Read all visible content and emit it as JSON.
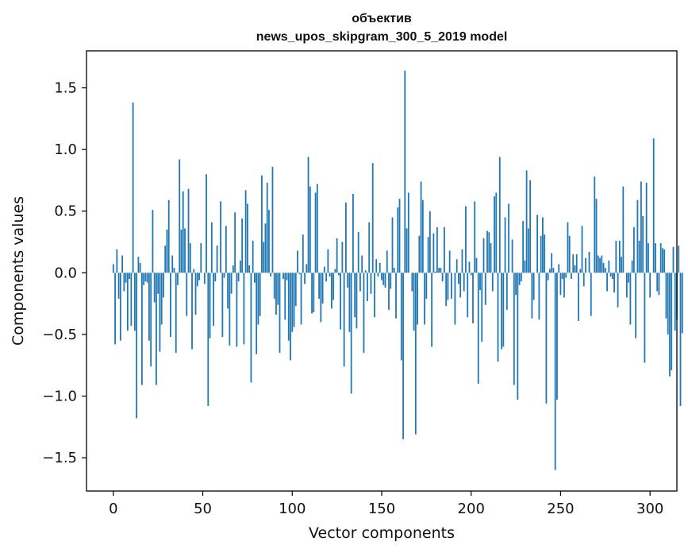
{
  "chart_data": {
    "type": "bar",
    "title": "объектив",
    "subtitle": "news_upos_skipgram_300_5_2019 model",
    "xlabel": "Vector components",
    "ylabel": "Components values",
    "xlim": [
      -15,
      315
    ],
    "ylim": [
      -1.77,
      1.8
    ],
    "xticks": [
      0,
      50,
      100,
      150,
      200,
      250,
      300
    ],
    "yticks": [
      -1.5,
      -1.0,
      -0.5,
      0.0,
      0.5,
      1.0,
      1.5
    ],
    "ytick_labels": [
      "−1.5",
      "−1.0",
      "−0.5",
      "0.0",
      "0.5",
      "1.0",
      "1.5"
    ],
    "grid": false,
    "bar_color": "#1f77b4",
    "x_start": 0,
    "values": [
      0.07,
      -0.58,
      0.19,
      -0.21,
      -0.55,
      0.14,
      -0.15,
      -0.08,
      -0.47,
      -0.05,
      -0.43,
      1.38,
      -0.47,
      -1.18,
      0.13,
      0.08,
      -0.91,
      -0.1,
      -0.07,
      -0.08,
      -0.55,
      -0.76,
      0.51,
      -0.24,
      -0.91,
      -0.17,
      -0.64,
      -0.42,
      -0.2,
      0.22,
      0.35,
      0.59,
      -0.52,
      0.14,
      0.04,
      -0.65,
      -0.1,
      0.92,
      0.35,
      0.66,
      0.36,
      -0.35,
      0.68,
      0.24,
      -0.62,
      0.03,
      -0.34,
      -0.11,
      -0.06,
      0.24,
      0.0,
      -0.09,
      0.8,
      -1.08,
      -0.53,
      0.41,
      -0.43,
      -0.07,
      0.22,
      0.0,
      0.58,
      -0.52,
      -0.04,
      0.38,
      -0.29,
      -0.59,
      -0.17,
      0.06,
      0.49,
      -0.6,
      -0.07,
      0.1,
      0.44,
      -0.58,
      0.67,
      0.56,
      0.06,
      -0.89,
      0.26,
      -0.08,
      -0.66,
      -0.42,
      -0.35,
      0.79,
      0.25,
      0.4,
      0.73,
      0.51,
      -0.03,
      0.86,
      -0.21,
      -0.34,
      -0.26,
      -0.65,
      0.0,
      -0.05,
      -0.38,
      -0.06,
      -0.55,
      -0.71,
      -0.48,
      -0.44,
      -0.27,
      0.18,
      -0.01,
      -0.42,
      0.31,
      -0.09,
      0.07,
      0.94,
      0.7,
      -0.33,
      -0.32,
      0.65,
      0.72,
      -0.21,
      -0.4,
      -0.25,
      0.05,
      -0.07,
      0.19,
      -0.03,
      -0.29,
      -0.22,
      0.03,
      0.28,
      -0.02,
      -0.46,
      0.25,
      -0.76,
      0.57,
      -0.12,
      -0.48,
      -0.98,
      0.64,
      -0.36,
      -0.45,
      0.33,
      -0.15,
      0.14,
      -0.65,
      0.02,
      -0.23,
      0.41,
      -0.17,
      0.89,
      -0.36,
      0.11,
      -0.03,
      0.08,
      -0.06,
      -0.1,
      -0.12,
      0.18,
      -0.3,
      -0.13,
      0.45,
      0.04,
      -0.37,
      0.53,
      0.6,
      -0.71,
      -1.35,
      1.64,
      0.36,
      0.65,
      0.0,
      -0.15,
      -0.47,
      -1.31,
      -0.42,
      0.3,
      0.74,
      0.59,
      -0.42,
      -0.21,
      0.29,
      0.5,
      -0.6,
      0.32,
      0.01,
      0.37,
      0.04,
      0.04,
      -0.07,
      0.37,
      -0.27,
      -0.22,
      0.18,
      -0.21,
      0.0,
      -0.42,
      0.11,
      -0.09,
      -0.2,
      0.19,
      -0.15,
      0.54,
      -0.36,
      0.09,
      -0.02,
      -0.41,
      0.58,
      0.12,
      -0.9,
      -0.14,
      -0.56,
      0.28,
      -0.26,
      0.34,
      0.33,
      0.24,
      -0.15,
      0.62,
      0.65,
      -0.72,
      0.94,
      -0.62,
      -0.6,
      0.45,
      -0.3,
      0.56,
      0.0,
      0.27,
      -0.91,
      -0.18,
      -1.03,
      -0.1,
      -0.07,
      0.42,
      0.1,
      0.83,
      0.36,
      0.75,
      -0.37,
      -0.22,
      0.0,
      0.47,
      -0.38,
      0.3,
      0.45,
      0.31,
      -1.06,
      -0.06,
      0.03,
      0.16,
      0.04,
      -1.6,
      -1.03,
      0.07,
      -0.18,
      -0.05,
      -0.2,
      -0.04,
      0.41,
      0.3,
      -0.05,
      0.15,
      0.06,
      0.15,
      -0.39,
      0.03,
      0.38,
      -0.11,
      0.12,
      0.0,
      0.17,
      -0.35,
      0.0,
      0.78,
      0.6,
      0.14,
      0.12,
      0.14,
      0.08,
      0.04,
      -0.15,
      0.1,
      -0.03,
      -0.05,
      -0.16,
      0.26,
      -0.28,
      0.26,
      0.13,
      0.7,
      0.0,
      -0.2,
      -0.08,
      -0.42,
      0.1,
      0.37,
      -0.53,
      0.59,
      0.26,
      0.74,
      0.46,
      -0.73,
      0.73,
      0.24,
      -0.2,
      0.0,
      1.09,
      0.24,
      -0.15,
      -0.18,
      0.24,
      0.2,
      0.19,
      -0.37,
      -0.5,
      -0.84,
      -0.79,
      0.21,
      -0.47,
      -0.38,
      0.22,
      -1.08,
      -0.49
    ]
  }
}
